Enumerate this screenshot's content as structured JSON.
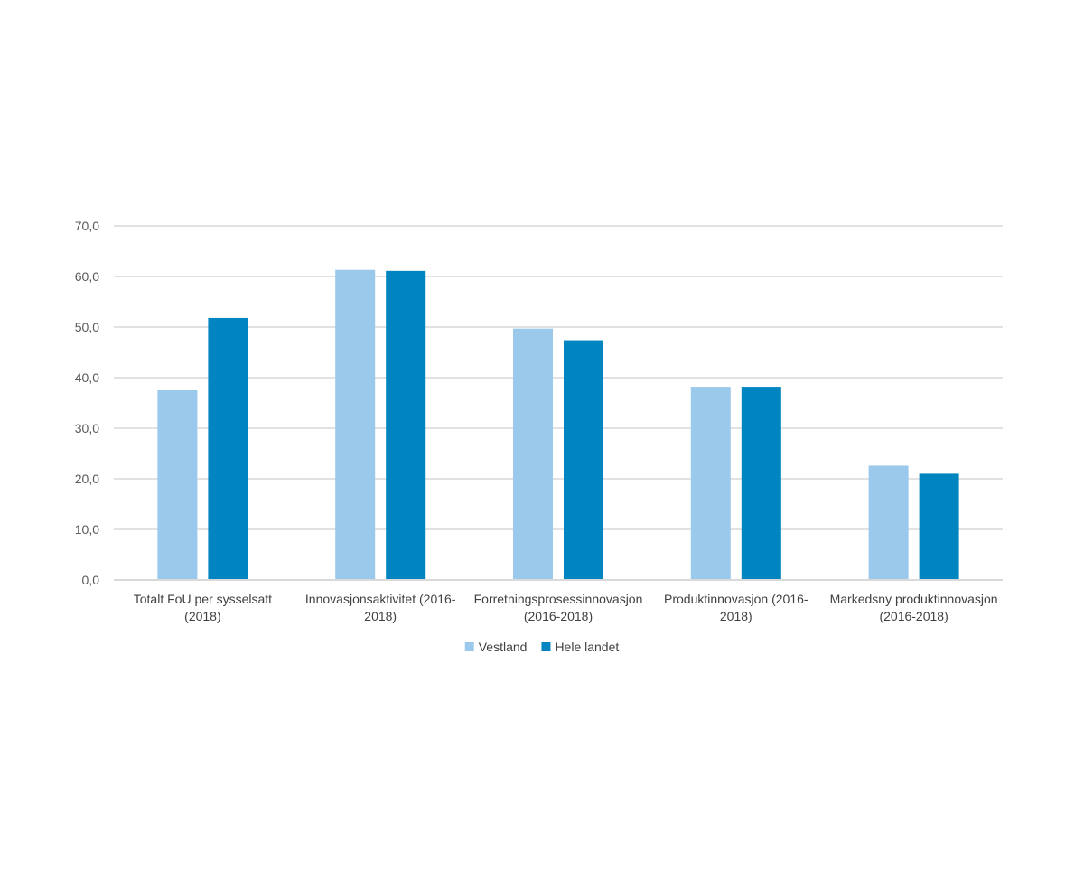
{
  "chart_data": {
    "type": "bar",
    "categories": [
      [
        "Totalt FoU per sysselsatt",
        "(2018)"
      ],
      [
        "Innovasjonsaktivitet (2016-",
        "2018)"
      ],
      [
        "Forretningsprosessinnovasjon",
        "(2016-2018)"
      ],
      [
        "Produktinnovasjon (2016-",
        "2018)"
      ],
      [
        "Markedsny produktinnovasjon",
        "(2016-2018)"
      ]
    ],
    "series": [
      {
        "name": "Vestland",
        "color": "#9BC9EC",
        "values": [
          37.5,
          61.3,
          49.7,
          38.2,
          22.6
        ]
      },
      {
        "name": "Hele landet",
        "color": "#0085C0",
        "values": [
          51.8,
          61.1,
          47.4,
          38.2,
          21.0
        ]
      }
    ],
    "yticks": [
      "0,0",
      "10,0",
      "20,0",
      "30,0",
      "40,0",
      "50,0",
      "60,0",
      "70,0"
    ],
    "ylim": [
      0,
      70
    ],
    "grid": true,
    "legend_position": "bottom",
    "colors": {
      "grid": "#D9D9D9",
      "axis": "#D9D9D9"
    }
  }
}
